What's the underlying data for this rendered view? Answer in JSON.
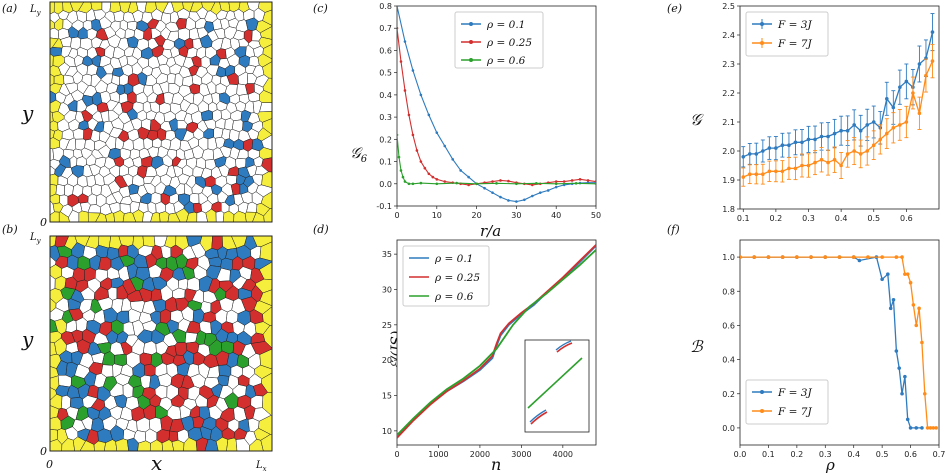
{
  "colors": {
    "blue": "#2f7bbf",
    "red": "#d32f2f",
    "green": "#2ca02c",
    "yellow": "#f5ee3c",
    "orange": "#ff8c1a",
    "cell_edge": "#222222"
  },
  "chart_data": [
    {
      "id": "a",
      "panel_label": "(a)",
      "type": "voronoi",
      "xlabel": "",
      "ylabel": "y",
      "x_ticks": [],
      "y_ticks": [
        "0",
        "L_y"
      ],
      "fill_fractions": {
        "blue": 0.11,
        "red": 0.1,
        "green": 0.0,
        "yellow_border": true
      }
    },
    {
      "id": "b",
      "panel_label": "(b)",
      "type": "voronoi",
      "xlabel": "x",
      "ylabel": "y",
      "x_ticks": [
        "0",
        "L_x"
      ],
      "y_ticks": [
        "0",
        "L_y"
      ],
      "fill_fractions": {
        "blue": 0.3,
        "red": 0.27,
        "green": 0.08,
        "yellow_border": true
      }
    },
    {
      "id": "c",
      "panel_label": "(c)",
      "type": "line",
      "xlabel": "r/a",
      "ylabel": "𝒢6",
      "xlim": [
        0,
        50
      ],
      "ylim": [
        -0.1,
        0.8
      ],
      "xticks": [
        0,
        10,
        20,
        30,
        40,
        50
      ],
      "yticks": [
        -0.1,
        0.0,
        0.1,
        0.2,
        0.3,
        0.4,
        0.5,
        0.6,
        0.7,
        0.8
      ],
      "legend": "top-center",
      "series": [
        {
          "name": "ρ = 0.1",
          "color": "#2f7bbf",
          "x": [
            0,
            2,
            4,
            6,
            8,
            10,
            12,
            14,
            16,
            18,
            20,
            22,
            24,
            26,
            28,
            30,
            32,
            34,
            36,
            38,
            40,
            42,
            44,
            46,
            48,
            50
          ],
          "y": [
            0.8,
            0.64,
            0.51,
            0.4,
            0.31,
            0.23,
            0.17,
            0.11,
            0.06,
            0.03,
            0.0,
            -0.02,
            -0.04,
            -0.06,
            -0.075,
            -0.08,
            -0.072,
            -0.055,
            -0.04,
            -0.03,
            -0.015,
            -0.005,
            0.0,
            0.003,
            0.005,
            0.005
          ]
        },
        {
          "name": "ρ = 0.25",
          "color": "#d32f2f",
          "x": [
            0,
            1,
            2,
            3,
            4,
            5,
            6,
            7,
            8,
            9,
            10,
            12,
            14,
            16,
            18,
            20,
            22,
            24,
            26,
            28,
            30,
            32,
            34,
            36,
            38,
            40,
            42,
            44,
            46,
            48,
            50
          ],
          "y": [
            0.7,
            0.55,
            0.42,
            0.31,
            0.22,
            0.15,
            0.1,
            0.07,
            0.045,
            0.03,
            0.02,
            0.01,
            0.005,
            0.0,
            -0.005,
            0.0,
            0.005,
            0.01,
            0.015,
            0.012,
            0.005,
            0.0,
            -0.005,
            0.0,
            0.005,
            0.01,
            0.01,
            0.015,
            0.02,
            0.015,
            0.01
          ]
        },
        {
          "name": "ρ = 0.6",
          "color": "#2ca02c",
          "x": [
            0,
            0.5,
            1,
            1.5,
            2,
            3,
            4,
            6,
            10,
            15,
            20,
            25,
            30,
            35,
            40,
            45,
            50
          ],
          "y": [
            0.22,
            0.12,
            0.06,
            0.03,
            0.01,
            0.0,
            0.0,
            0.003,
            0.0,
            0.003,
            0.0,
            0.002,
            0.0,
            0.002,
            0.0,
            0.002,
            0.0
          ]
        }
      ]
    },
    {
      "id": "d",
      "panel_label": "(d)",
      "type": "line",
      "xlabel": "n",
      "ylabel": "ℰ/(JS)",
      "xlim": [
        0,
        4800
      ],
      "ylim": [
        8,
        37
      ],
      "xticks": [
        0,
        1000,
        2000,
        3000,
        4000
      ],
      "yticks": [
        10,
        15,
        20,
        25,
        30,
        35
      ],
      "legend": "top-left",
      "inset": true,
      "series": [
        {
          "name": "ρ = 0.1",
          "color": "#2f7bbf",
          "x": [
            0,
            400,
            800,
            1200,
            1600,
            2000,
            2300,
            2400,
            2500,
            2700,
            3000,
            3300,
            3600,
            4000,
            4400,
            4800
          ],
          "y": [
            9.2,
            11.6,
            13.8,
            15.6,
            17.0,
            18.6,
            20.3,
            22.0,
            23.5,
            25.0,
            26.5,
            27.8,
            29.5,
            31.5,
            33.8,
            36.2
          ]
        },
        {
          "name": "ρ = 0.25",
          "color": "#d32f2f",
          "x": [
            0,
            400,
            800,
            1200,
            1600,
            2000,
            2300,
            2400,
            2500,
            2700,
            3000,
            3300,
            3600,
            4000,
            4400,
            4800
          ],
          "y": [
            9.0,
            11.5,
            13.7,
            15.6,
            17.1,
            18.8,
            20.6,
            22.3,
            23.8,
            25.2,
            26.7,
            28.0,
            29.6,
            31.7,
            34.0,
            36.3
          ]
        },
        {
          "name": "ρ = 0.6",
          "color": "#2ca02c",
          "x": [
            0,
            400,
            800,
            1200,
            1600,
            2000,
            2400,
            2800,
            3200,
            3600,
            4000,
            4400,
            4800
          ],
          "y": [
            9.4,
            11.8,
            14.0,
            15.9,
            17.4,
            19.2,
            21.6,
            25.0,
            27.6,
            29.4,
            31.4,
            33.4,
            35.6
          ]
        }
      ]
    },
    {
      "id": "e",
      "panel_label": "(e)",
      "type": "line",
      "xlabel": "",
      "ylabel": "𝒢",
      "xlim": [
        0.09,
        0.7
      ],
      "ylim": [
        1.8,
        2.5
      ],
      "xticks": [
        0.1,
        0.2,
        0.3,
        0.4,
        0.5,
        0.6
      ],
      "yticks": [
        1.8,
        1.9,
        2.0,
        2.1,
        2.2,
        2.3,
        2.4,
        2.5
      ],
      "legend": "top-left",
      "series": [
        {
          "name": "F = 3J",
          "color": "#2f7bbf",
          "x": [
            0.1,
            0.12,
            0.14,
            0.16,
            0.18,
            0.2,
            0.22,
            0.24,
            0.26,
            0.28,
            0.3,
            0.32,
            0.34,
            0.36,
            0.38,
            0.4,
            0.42,
            0.44,
            0.46,
            0.48,
            0.5,
            0.52,
            0.54,
            0.56,
            0.58,
            0.6,
            0.62,
            0.64,
            0.66,
            0.68
          ],
          "y": [
            1.98,
            1.99,
            1.99,
            2.0,
            2.01,
            2.01,
            2.02,
            2.02,
            2.03,
            2.03,
            2.04,
            2.04,
            2.05,
            2.05,
            2.06,
            2.07,
            2.07,
            2.09,
            2.07,
            2.09,
            2.1,
            2.08,
            2.18,
            2.15,
            2.22,
            2.24,
            2.22,
            2.3,
            2.32,
            2.41
          ],
          "err": 0.05
        },
        {
          "name": "F = 7J",
          "color": "#ff8c1a",
          "x": [
            0.1,
            0.12,
            0.14,
            0.16,
            0.18,
            0.2,
            0.22,
            0.24,
            0.26,
            0.28,
            0.3,
            0.32,
            0.34,
            0.36,
            0.38,
            0.4,
            0.42,
            0.44,
            0.46,
            0.48,
            0.5,
            0.52,
            0.54,
            0.56,
            0.58,
            0.6,
            0.62,
            0.64,
            0.66,
            0.68
          ],
          "y": [
            1.91,
            1.92,
            1.92,
            1.92,
            1.93,
            1.93,
            1.93,
            1.94,
            1.94,
            1.95,
            1.95,
            1.96,
            1.97,
            1.96,
            1.97,
            1.95,
            1.99,
            2.0,
            1.99,
            2.0,
            2.02,
            2.04,
            2.06,
            2.08,
            2.09,
            2.1,
            2.2,
            2.13,
            2.26,
            2.31
          ],
          "err": 0.045
        }
      ]
    },
    {
      "id": "f",
      "panel_label": "(f)",
      "type": "line",
      "xlabel": "ρ",
      "ylabel": "ℬ",
      "xlim": [
        0,
        0.7
      ],
      "ylim": [
        -0.1,
        1.1
      ],
      "xticks": [
        0.0,
        0.1,
        0.2,
        0.3,
        0.4,
        0.5,
        0.6,
        0.7
      ],
      "yticks": [
        0.0,
        0.2,
        0.4,
        0.6,
        0.8,
        1.0
      ],
      "legend": "bottom-left",
      "series": [
        {
          "name": "F = 3J",
          "color": "#2f7bbf",
          "x": [
            0.0,
            0.05,
            0.1,
            0.15,
            0.2,
            0.25,
            0.3,
            0.35,
            0.4,
            0.42,
            0.48,
            0.5,
            0.52,
            0.53,
            0.54,
            0.55,
            0.56,
            0.57,
            0.58,
            0.59,
            0.6,
            0.62,
            0.64
          ],
          "y": [
            1.0,
            1.0,
            1.0,
            1.0,
            1.0,
            1.0,
            1.0,
            1.0,
            1.0,
            0.98,
            1.0,
            0.87,
            0.9,
            0.7,
            0.75,
            0.45,
            0.35,
            0.2,
            0.3,
            0.05,
            0.0,
            0.0,
            0.0
          ]
        },
        {
          "name": "F = 7J",
          "color": "#ff8c1a",
          "x": [
            0.0,
            0.05,
            0.1,
            0.15,
            0.2,
            0.25,
            0.3,
            0.35,
            0.4,
            0.45,
            0.5,
            0.55,
            0.57,
            0.58,
            0.59,
            0.6,
            0.61,
            0.62,
            0.63,
            0.64,
            0.65,
            0.66,
            0.67,
            0.68,
            0.69
          ],
          "y": [
            1.0,
            1.0,
            1.0,
            1.0,
            1.0,
            1.0,
            1.0,
            1.0,
            1.0,
            1.0,
            1.0,
            1.0,
            1.0,
            0.9,
            0.9,
            0.85,
            0.72,
            0.6,
            0.7,
            0.5,
            0.2,
            0.0,
            0.0,
            0.0,
            0.0
          ]
        }
      ]
    }
  ]
}
